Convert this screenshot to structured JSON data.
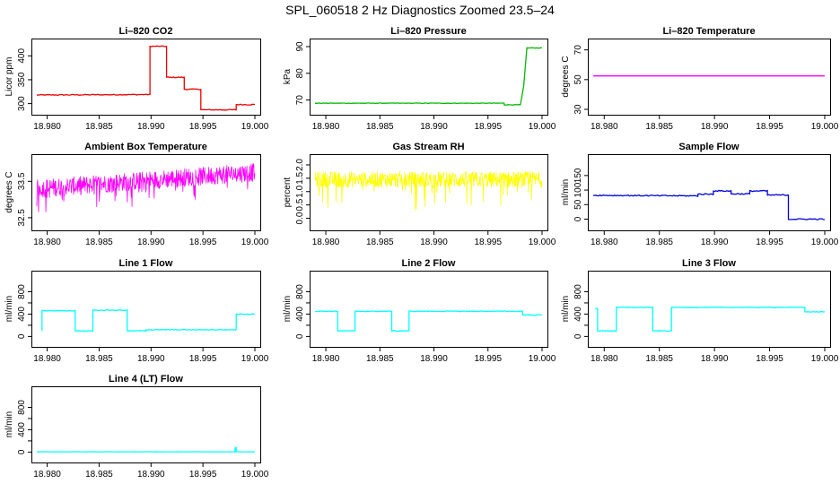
{
  "page": {
    "title": "SPL_060518  2 Hz Diagnostics Zoomed 23.5–24"
  },
  "colors": {
    "red": "#ee0000",
    "green": "#00bb00",
    "magenta": "#ff00ff",
    "yellow": "#ffff00",
    "blue": "#0000dd",
    "cyan": "#00ffff"
  },
  "chart_data": [
    {
      "type": "line",
      "title": "Li–820 CO2",
      "ylabel": "Licor ppm",
      "xlabel": "",
      "xlim": [
        18.979,
        19.0
      ],
      "ylim": [
        288,
        425
      ],
      "xticks": [
        "18.980",
        "18.985",
        "18.990",
        "18.995",
        "19.000"
      ],
      "yticks": [
        300,
        350,
        400
      ],
      "ytick_labels": [
        "300",
        "350",
        "400"
      ],
      "color": "red",
      "noise": 1,
      "style": "step",
      "series": [
        {
          "name": "CO2",
          "x": [
            18.979,
            18.9899,
            18.9899,
            18.9915,
            18.9915,
            18.9932,
            18.9932,
            18.9948,
            18.9948,
            18.9982,
            18.9982,
            19.0
          ],
          "y": [
            318,
            319,
            420,
            420,
            355,
            355,
            330,
            330,
            287,
            287,
            298,
            298
          ]
        }
      ]
    },
    {
      "type": "line",
      "title": "Li–820 Pressure",
      "ylabel": "kPa",
      "xlabel": "",
      "xlim": [
        18.979,
        19.0
      ],
      "ylim": [
        66.5,
        91
      ],
      "xticks": [
        "18.980",
        "18.985",
        "18.990",
        "18.995",
        "19.000"
      ],
      "yticks": [
        70,
        80,
        90
      ],
      "ytick_labels": [
        "70",
        "80",
        "90"
      ],
      "color": "green",
      "noise": 0.1,
      "style": "step",
      "series": [
        {
          "name": "Pressure",
          "x": [
            18.979,
            18.9965,
            18.9965,
            18.998,
            18.9983,
            18.9986,
            19.0
          ],
          "y": [
            68.8,
            68.8,
            68.2,
            68.2,
            75,
            89.5,
            89.5
          ]
        }
      ]
    },
    {
      "type": "line",
      "title": "Li–820 Temperature",
      "ylabel": "degrees C",
      "xlabel": "",
      "xlim": [
        18.979,
        19.0
      ],
      "ylim": [
        30,
        74
      ],
      "xticks": [
        "18.980",
        "18.985",
        "18.990",
        "18.995",
        "19.000"
      ],
      "yticks": [
        30,
        50,
        70
      ],
      "ytick_labels": [
        "30",
        "50",
        "70"
      ],
      "color": "magenta",
      "noise": 0,
      "style": "line",
      "series": [
        {
          "name": "Temperature",
          "x": [
            18.979,
            19.0
          ],
          "y": [
            52.5,
            52.5
          ]
        }
      ]
    },
    {
      "type": "line",
      "title": "Ambient Box Temperature",
      "ylabel": "degrees C",
      "xlabel": "",
      "xlim": [
        18.979,
        19.0
      ],
      "ylim": [
        32.3,
        34.1
      ],
      "xticks": [
        "18.980",
        "18.985",
        "18.990",
        "18.995",
        "19.000"
      ],
      "yticks": [
        32.5,
        33.5
      ],
      "ytick_labels": [
        "32.5",
        "33.5"
      ],
      "color": "magenta",
      "noise": 0.25,
      "spikes": 0.5,
      "style": "noisy",
      "series": [
        {
          "name": "Box Temperature",
          "x": [
            18.979,
            19.0
          ],
          "y": [
            33.3,
            33.75
          ]
        }
      ]
    },
    {
      "type": "line",
      "title": "Gas Stream RH",
      "ylabel": "percent",
      "xlabel": "",
      "xlim": [
        18.979,
        19.0
      ],
      "ylim": [
        -0.25,
        2.2
      ],
      "xticks": [
        "18.980",
        "18.985",
        "18.990",
        "18.995",
        "19.000"
      ],
      "yticks": [
        0,
        0.5,
        1,
        1.5,
        2
      ],
      "ytick_labels": [
        "0.0",
        "0.5",
        "1.0",
        "1.5",
        "2.0"
      ],
      "color": "yellow",
      "noise": 0.3,
      "spikes": 1.1,
      "style": "noisy",
      "series": [
        {
          "name": "RH",
          "x": [
            18.979,
            19.0
          ],
          "y": [
            1.45,
            1.45
          ]
        }
      ]
    },
    {
      "type": "line",
      "title": "Sample Flow",
      "ylabel": "ml/min",
      "xlabel": "",
      "xlim": [
        18.979,
        19.0
      ],
      "ylim": [
        -20,
        205
      ],
      "xticks": [
        "18.980",
        "18.985",
        "18.990",
        "18.995",
        "19.000"
      ],
      "yticks": [
        0,
        50,
        100,
        150
      ],
      "ytick_labels": [
        "0",
        "50",
        "100",
        "150"
      ],
      "color": "blue",
      "noise": 2,
      "style": "step",
      "series": [
        {
          "name": "Sample Flow",
          "x": [
            18.979,
            18.9885,
            18.9885,
            18.9899,
            18.9899,
            18.9915,
            18.9915,
            18.9932,
            18.9932,
            18.9948,
            18.9948,
            18.9967,
            18.9967,
            19.0
          ],
          "y": [
            82,
            80,
            86,
            86,
            97,
            97,
            87,
            87,
            97,
            97,
            83,
            83,
            0,
            0
          ]
        }
      ]
    },
    {
      "type": "line",
      "title": "Line 1 Flow",
      "ylabel": "ml/min",
      "xlabel": "",
      "xlim": [
        18.979,
        19.0
      ],
      "ylim": [
        -90,
        1080
      ],
      "xticks": [
        "18.980",
        "18.985",
        "18.990",
        "18.995",
        "19.000"
      ],
      "yticks": [
        0,
        200,
        400,
        600,
        800
      ],
      "ytick_labels": [
        "0",
        "400",
        "800"
      ],
      "ytick_label_values": [
        0,
        400,
        800
      ],
      "color": "cyan",
      "noise": 6,
      "style": "step",
      "series": [
        {
          "name": "Line 1",
          "x": [
            18.9795,
            18.9795,
            18.9827,
            18.9827,
            18.9844,
            18.9844,
            18.9877,
            18.9877,
            18.9895,
            18.9895,
            18.9982,
            18.9982,
            19.0
          ],
          "y": [
            100,
            460,
            460,
            100,
            100,
            470,
            470,
            100,
            100,
            120,
            120,
            400,
            400
          ]
        }
      ]
    },
    {
      "type": "line",
      "title": "Line 2 Flow",
      "ylabel": "ml/min",
      "xlabel": "",
      "xlim": [
        18.979,
        19.0
      ],
      "ylim": [
        -90,
        1080
      ],
      "xticks": [
        "18.980",
        "18.985",
        "18.990",
        "18.995",
        "19.000"
      ],
      "yticks": [
        0,
        200,
        400,
        600,
        800
      ],
      "ytick_labels": [
        "0",
        "400",
        "800"
      ],
      "ytick_label_values": [
        0,
        400,
        800
      ],
      "color": "cyan",
      "noise": 6,
      "style": "step",
      "series": [
        {
          "name": "Line 2",
          "x": [
            18.979,
            18.9811,
            18.9811,
            18.9827,
            18.9827,
            18.9861,
            18.9861,
            18.9877,
            18.9877,
            18.9982,
            18.9982,
            19.0
          ],
          "y": [
            450,
            450,
            100,
            100,
            450,
            450,
            100,
            100,
            450,
            450,
            385,
            385
          ]
        }
      ]
    },
    {
      "type": "line",
      "title": "Line 3 Flow",
      "ylabel": "ml/min",
      "xlabel": "",
      "xlim": [
        18.979,
        19.0
      ],
      "ylim": [
        -90,
        1080
      ],
      "xticks": [
        "18.980",
        "18.985",
        "18.990",
        "18.995",
        "19.000"
      ],
      "yticks": [
        0,
        200,
        400,
        600,
        800
      ],
      "ytick_labels": [
        "0",
        "400",
        "800"
      ],
      "ytick_label_values": [
        0,
        400,
        800
      ],
      "color": "cyan",
      "noise": 6,
      "style": "step",
      "series": [
        {
          "name": "Line 3",
          "x": [
            18.9792,
            18.9794,
            18.9794,
            18.9811,
            18.9811,
            18.9844,
            18.9844,
            18.9861,
            18.9861,
            18.9982,
            18.9982,
            19.0
          ],
          "y": [
            500,
            500,
            100,
            100,
            520,
            520,
            100,
            100,
            520,
            520,
            440,
            440
          ]
        }
      ]
    },
    {
      "type": "line",
      "title": "Line 4 (LT) Flow",
      "ylabel": "ml/min",
      "xlabel": "",
      "xlim": [
        18.979,
        19.0
      ],
      "ylim": [
        -90,
        1080
      ],
      "xticks": [
        "18.980",
        "18.985",
        "18.990",
        "18.995",
        "19.000"
      ],
      "yticks": [
        0,
        200,
        400,
        600,
        800
      ],
      "ytick_labels": [
        "0",
        "400",
        "800"
      ],
      "ytick_label_values": [
        0,
        400,
        800
      ],
      "color": "cyan",
      "noise": 1,
      "style": "step",
      "series": [
        {
          "name": "Line 4",
          "x": [
            18.979,
            18.9981,
            18.9981,
            18.9982,
            18.9982,
            19.0
          ],
          "y": [
            5,
            5,
            80,
            80,
            5,
            5
          ]
        }
      ]
    }
  ]
}
